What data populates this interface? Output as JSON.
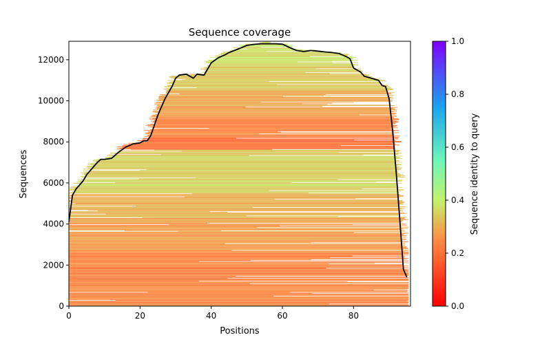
{
  "chart_data": {
    "type": "heatmap",
    "title": "Sequence coverage",
    "xlabel": "Positions",
    "ylabel": "Sequences",
    "xlim": [
      0,
      96
    ],
    "ylim": [
      0,
      12900
    ],
    "xticks": [
      "0",
      "20",
      "40",
      "60",
      "80"
    ],
    "xtick_values": [
      0,
      20,
      40,
      60,
      80
    ],
    "yticks": [
      "0",
      "2000",
      "4000",
      "6000",
      "8000",
      "10000",
      "12000"
    ],
    "ytick_values": [
      0,
      2000,
      4000,
      6000,
      8000,
      10000,
      12000
    ],
    "colorbar": {
      "label": "Sequence identity to query",
      "range": [
        0.0,
        1.0
      ],
      "colormap": "rainbow_r",
      "ticks": [
        "0.0",
        "0.2",
        "0.4",
        "0.6",
        "0.8",
        "1.0"
      ],
      "tick_values": [
        0.0,
        0.2,
        0.4,
        0.6,
        0.8,
        1.0
      ]
    },
    "identity_bands": [
      {
        "from": 0,
        "to": 2700,
        "identity": 0.24
      },
      {
        "from": 2700,
        "to": 4300,
        "identity": 0.28
      },
      {
        "from": 4300,
        "to": 5500,
        "identity": 0.31
      },
      {
        "from": 5500,
        "to": 7600,
        "identity": 0.35
      },
      {
        "from": 7600,
        "to": 8200,
        "identity": 0.2
      },
      {
        "from": 8200,
        "to": 9200,
        "identity": 0.24
      },
      {
        "from": 9200,
        "to": 10500,
        "identity": 0.29
      },
      {
        "from": 10500,
        "to": 11800,
        "identity": 0.34
      },
      {
        "from": 11800,
        "to": 12900,
        "identity": 0.38
      }
    ],
    "series": [
      {
        "name": "coverage",
        "color": "#000000",
        "x": [
          0,
          1,
          2,
          4,
          5,
          6,
          8,
          9,
          10,
          12,
          14,
          16,
          18,
          20,
          21,
          22,
          23,
          25,
          27,
          29,
          30,
          31,
          33,
          35,
          36,
          38,
          40,
          42,
          44,
          45,
          48,
          50,
          52,
          54,
          56,
          58,
          60,
          62,
          64,
          66,
          68,
          70,
          72,
          74,
          76,
          78,
          79,
          80,
          82,
          83,
          85,
          87,
          88,
          89,
          90,
          91,
          92,
          93,
          94,
          95
        ],
        "values": [
          4100,
          5400,
          5700,
          6100,
          6400,
          6600,
          7000,
          7150,
          7150,
          7200,
          7500,
          7750,
          7900,
          7950,
          8050,
          8050,
          8300,
          9300,
          10100,
          10700,
          11100,
          11250,
          11300,
          11100,
          11300,
          11250,
          11850,
          12100,
          12250,
          12350,
          12550,
          12700,
          12750,
          12780,
          12780,
          12780,
          12760,
          12600,
          12450,
          12400,
          12450,
          12420,
          12380,
          12350,
          12300,
          12150,
          12050,
          11600,
          11400,
          11200,
          11100,
          11000,
          10750,
          10700,
          10100,
          8500,
          6500,
          4200,
          1800,
          1400
        ]
      }
    ]
  }
}
